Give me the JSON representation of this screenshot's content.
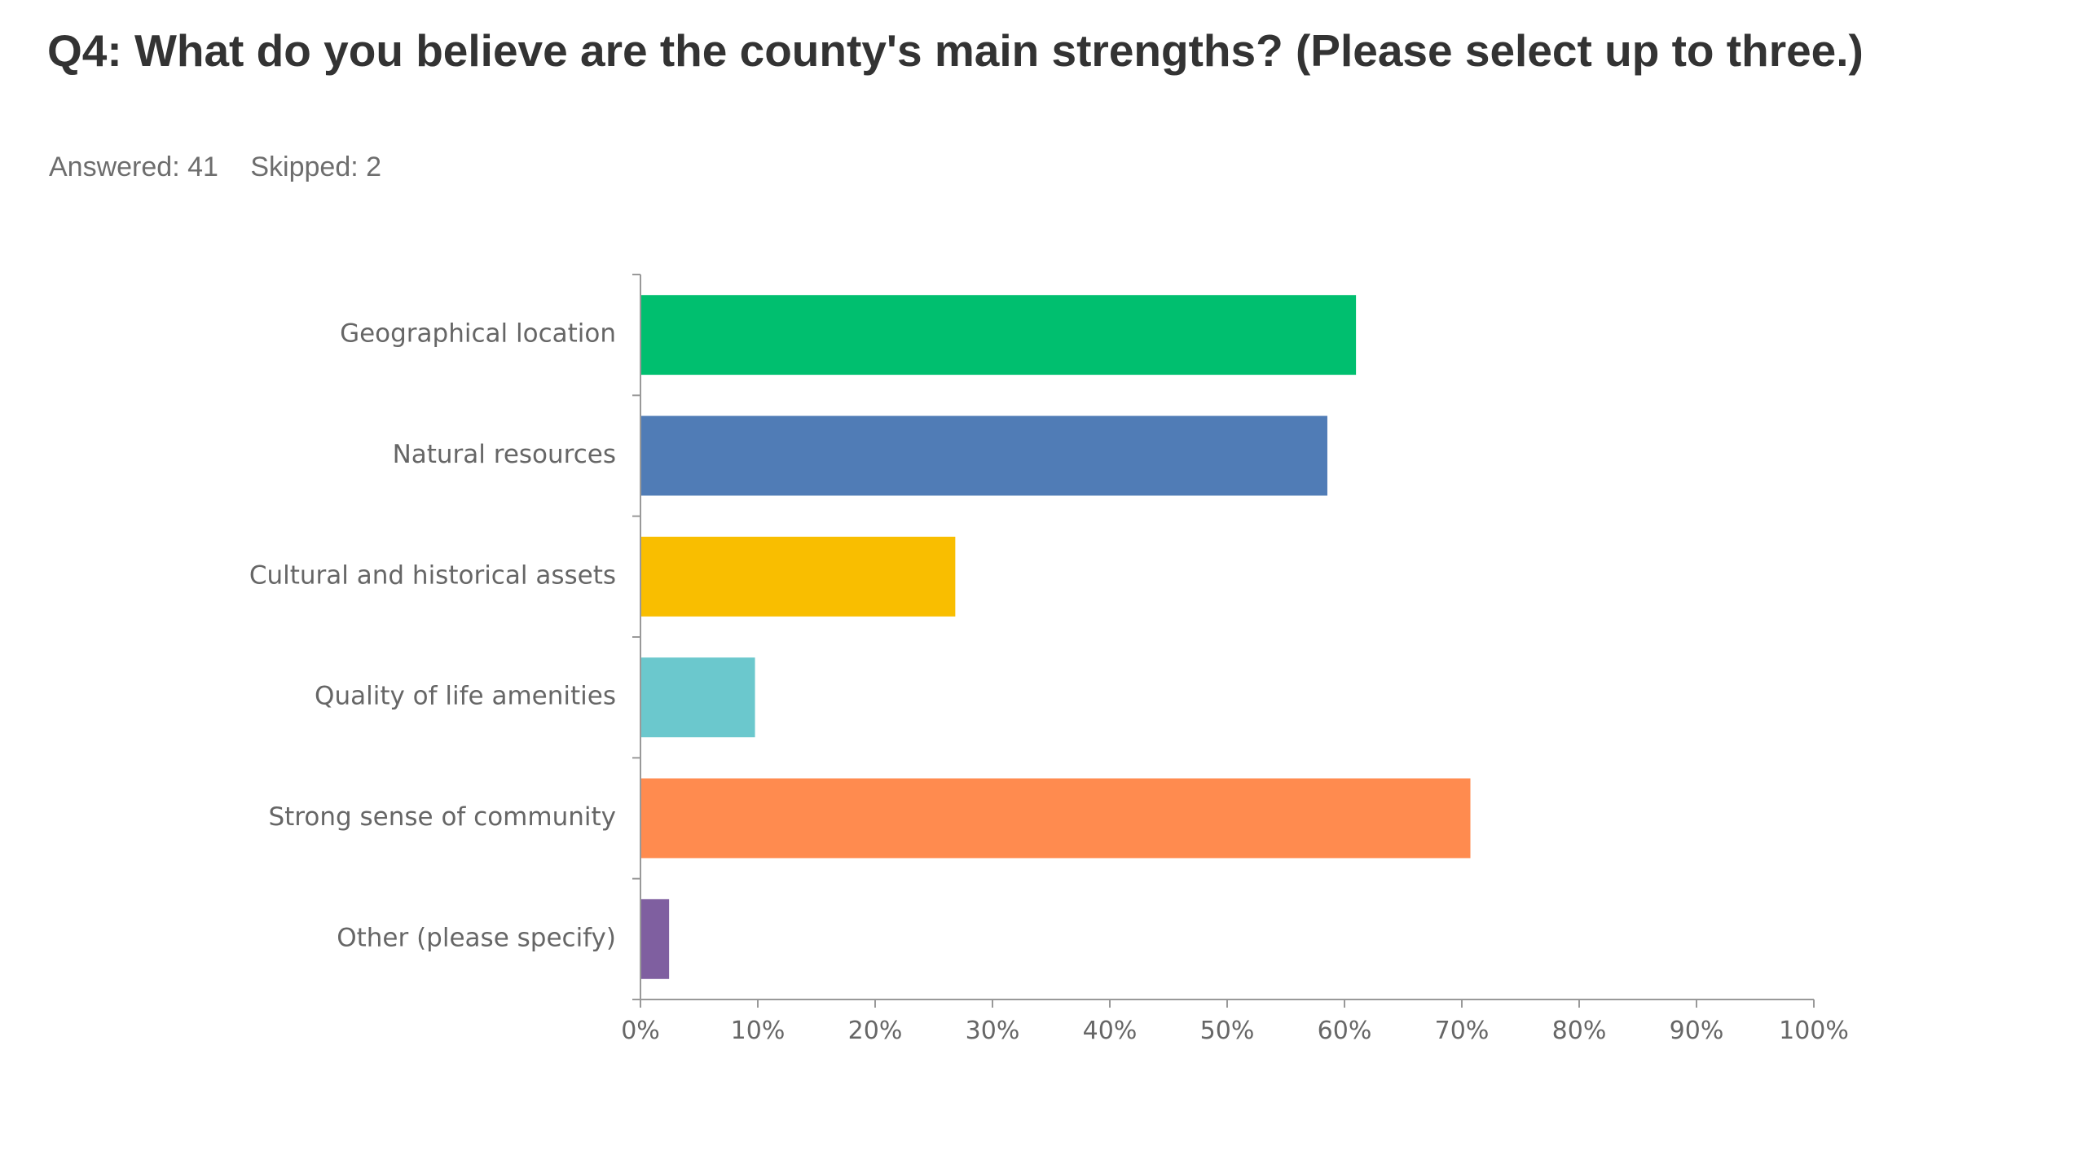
{
  "question": {
    "title": "Q4: What do you believe are the county's main strengths? (Please select up to three.)",
    "answered": "Answered: 41",
    "skipped": "Skipped: 2"
  },
  "chart_data": {
    "type": "bar",
    "orientation": "horizontal",
    "categories": [
      "Geographical location",
      "Natural resources",
      "Cultural and historical assets",
      "Quality of life amenities",
      "Strong sense of community",
      "Other (please specify)"
    ],
    "values": [
      0.6098,
      0.5854,
      0.2683,
      0.0976,
      0.7073,
      0.0244
    ],
    "colors": [
      "#00bf6f",
      "#507cb6",
      "#f9be00",
      "#6bc8cd",
      "#ff8b4f",
      "#7f5fa0"
    ],
    "xlim": [
      0,
      1
    ],
    "x_ticks": [
      "0%",
      "10%",
      "20%",
      "30%",
      "40%",
      "50%",
      "60%",
      "70%",
      "80%",
      "90%",
      "100%"
    ],
    "grid": false
  }
}
